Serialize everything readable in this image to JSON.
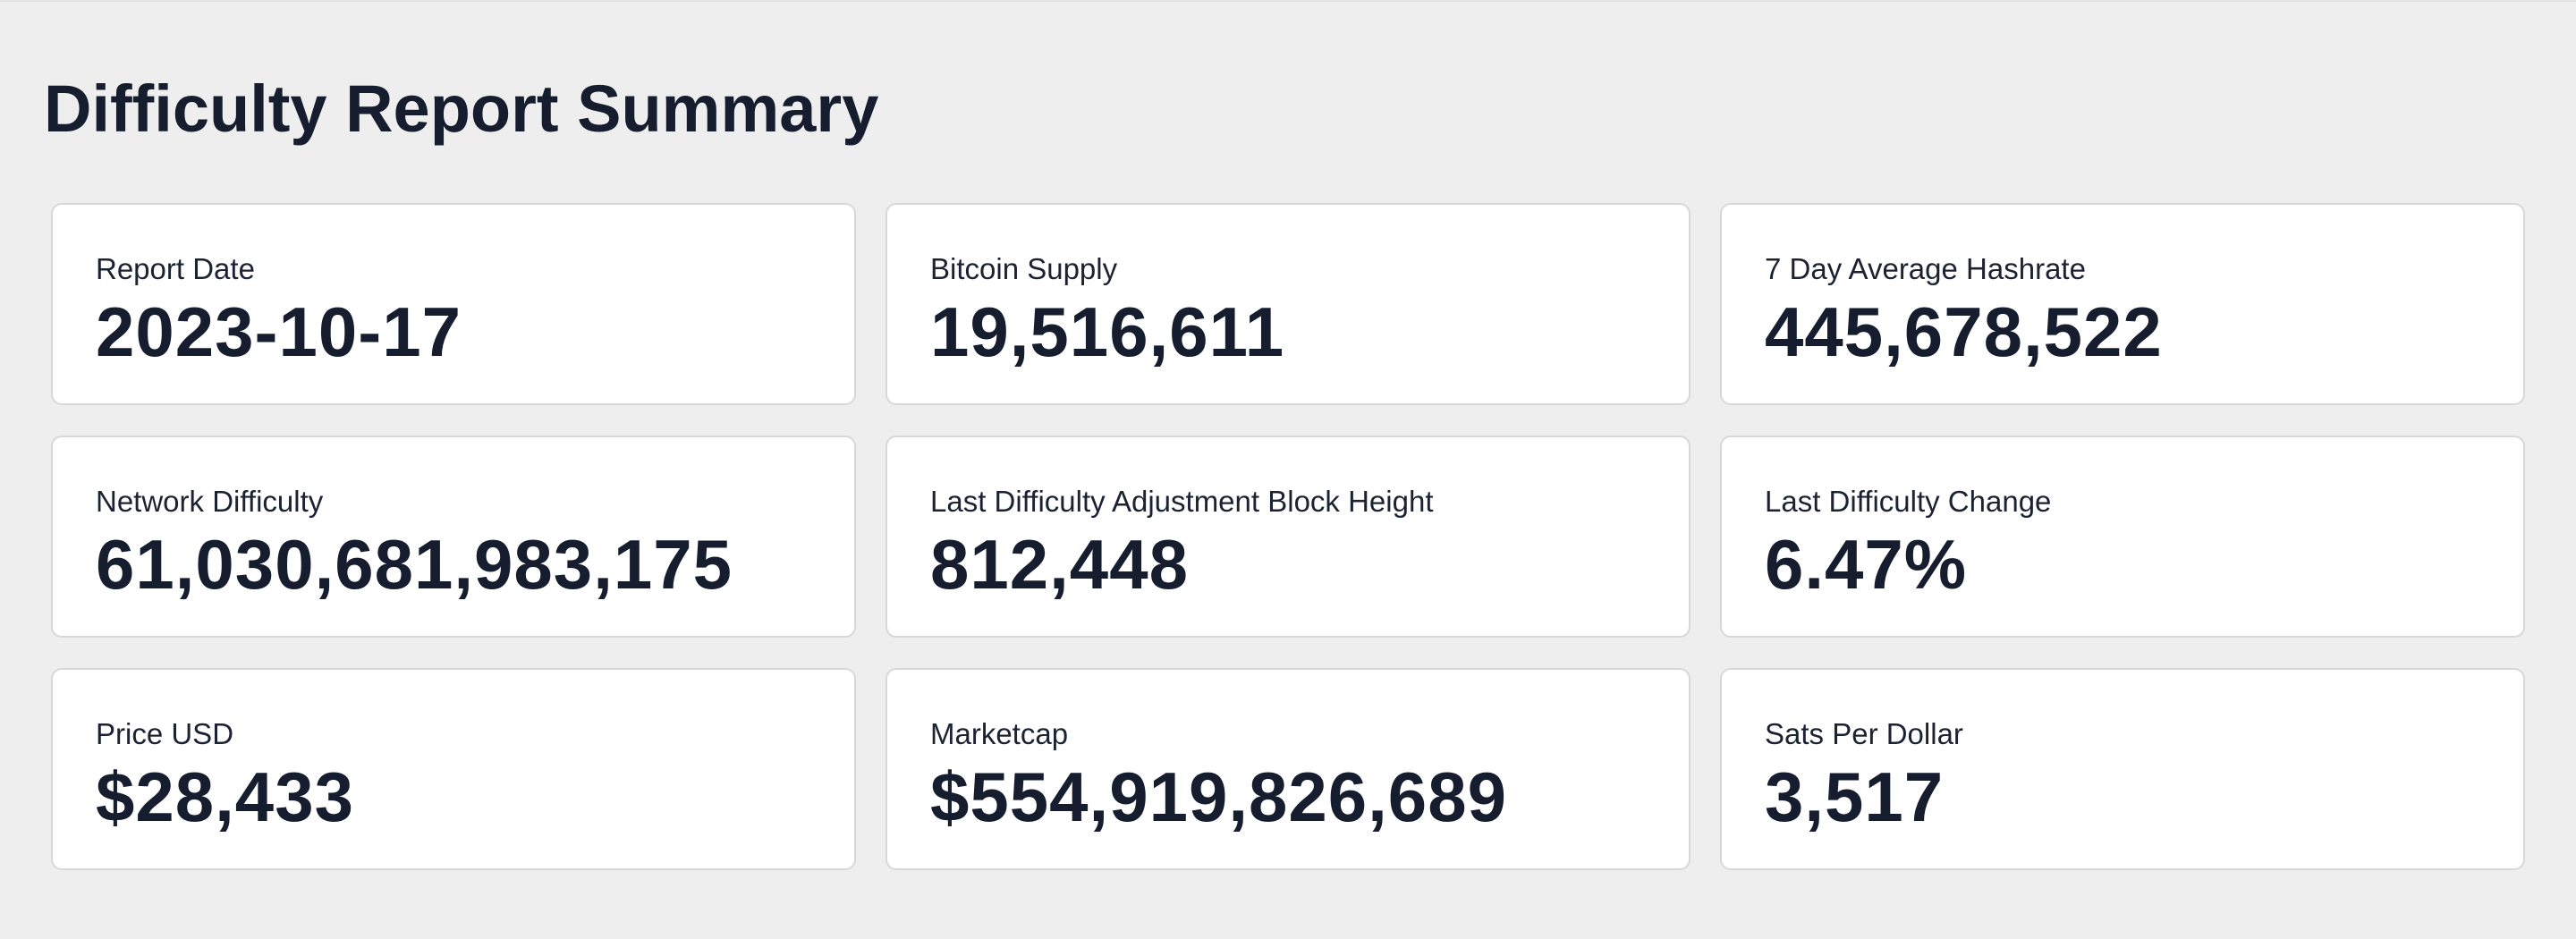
{
  "page": {
    "title": "Difficulty Report Summary"
  },
  "colors": {
    "background": "#eeeeee",
    "card_background": "#ffffff",
    "card_border": "#d8d8d8",
    "text_primary": "#151d2e"
  },
  "cards": [
    {
      "label": "Report Date",
      "value": "2023-10-17"
    },
    {
      "label": "Bitcoin Supply",
      "value": "19,516,611"
    },
    {
      "label": "7 Day Average Hashrate",
      "value": "445,678,522"
    },
    {
      "label": "Network Difficulty",
      "value": "61,030,681,983,175"
    },
    {
      "label": "Last Difficulty Adjustment Block Height",
      "value": "812,448"
    },
    {
      "label": "Last Difficulty Change",
      "value": "6.47%"
    },
    {
      "label": "Price USD",
      "value": "$28,433"
    },
    {
      "label": "Marketcap",
      "value": "$554,919,826,689"
    },
    {
      "label": "Sats Per Dollar",
      "value": "3,517"
    }
  ]
}
